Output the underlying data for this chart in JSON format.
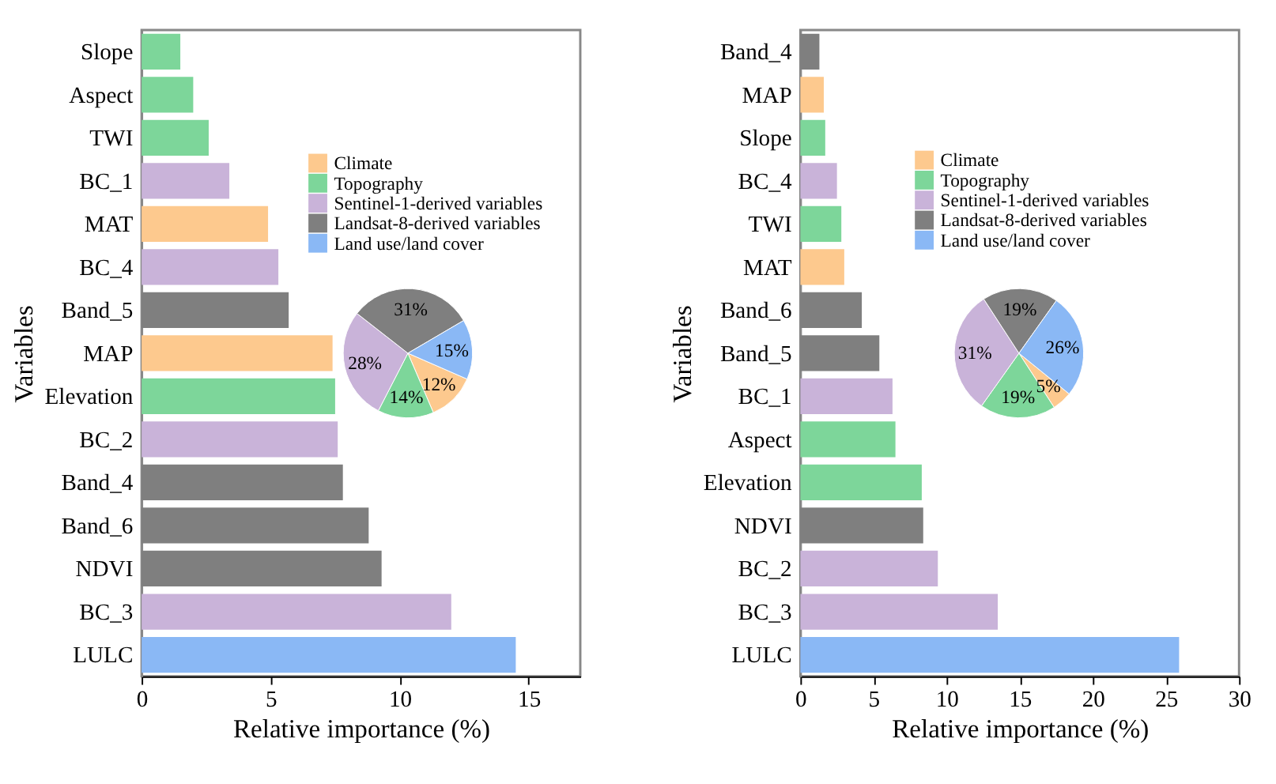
{
  "chart_data": [
    {
      "type": "bar",
      "orientation": "horizontal",
      "xlabel": "Relative importance (%)",
      "ylabel": "Variables",
      "categories": [
        "Slope",
        "Aspect",
        "TWI",
        "BC_1",
        "MAT",
        "BC_4",
        "Band_5",
        "MAP",
        "Elevation",
        "BC_2",
        "Band_4",
        "Band_6",
        "NDVI",
        "BC_3",
        "LULC"
      ],
      "values": [
        1.5,
        2.0,
        2.6,
        3.4,
        4.9,
        5.3,
        5.7,
        7.4,
        7.5,
        7.6,
        7.8,
        8.8,
        9.3,
        12.0,
        14.5
      ],
      "colors": [
        "#7dd69a",
        "#7dd69a",
        "#7dd69a",
        "#c9b3d9",
        "#fdc98e",
        "#c9b3d9",
        "#7f7f7f",
        "#fdc98e",
        "#7dd69a",
        "#c9b3d9",
        "#7f7f7f",
        "#7f7f7f",
        "#7f7f7f",
        "#c9b3d9",
        "#8ab8f5"
      ],
      "xlim": [
        0,
        17
      ],
      "xticks": [
        0,
        5,
        10,
        15
      ],
      "grid": false
    },
    {
      "type": "pie",
      "categories": [
        "Climate",
        "Topography",
        "Sentinel-1-derived variables",
        "Landsat-8-derived variables",
        "Land use/land cover"
      ],
      "values": [
        12,
        14,
        28,
        31,
        15
      ],
      "value_labels": [
        "12%",
        "14%",
        "28%",
        "31%",
        "15%"
      ],
      "colors": [
        "#fdc98e",
        "#7dd69a",
        "#c9b3d9",
        "#7f7f7f",
        "#8ab8f5"
      ],
      "legend": "top"
    },
    {
      "type": "bar",
      "orientation": "horizontal",
      "xlabel": "Relative importance (%)",
      "ylabel": "Variables",
      "categories": [
        "Band_4",
        "MAP",
        "Slope",
        "BC_4",
        "TWI",
        "MAT",
        "Band_6",
        "Band_5",
        "BC_1",
        "Aspect",
        "Elevation",
        "NDVI",
        "BC_2",
        "BC_3",
        "LULC"
      ],
      "values": [
        1.3,
        1.6,
        1.7,
        2.5,
        2.8,
        3.0,
        4.2,
        5.4,
        6.3,
        6.5,
        8.3,
        8.4,
        9.4,
        13.5,
        25.9
      ],
      "colors": [
        "#7f7f7f",
        "#fdc98e",
        "#7dd69a",
        "#c9b3d9",
        "#7dd69a",
        "#fdc98e",
        "#7f7f7f",
        "#7f7f7f",
        "#c9b3d9",
        "#7dd69a",
        "#7dd69a",
        "#7f7f7f",
        "#c9b3d9",
        "#c9b3d9",
        "#8ab8f5"
      ],
      "xlim": [
        0,
        30
      ],
      "xticks": [
        0,
        5,
        10,
        15,
        20,
        25,
        30
      ],
      "grid": false
    },
    {
      "type": "pie",
      "categories": [
        "Climate",
        "Topography",
        "Sentinel-1-derived variables",
        "Landsat-8-derived variables",
        "Land use/land cover"
      ],
      "values": [
        5,
        19,
        31,
        19,
        26
      ],
      "value_labels": [
        "5%",
        "19%",
        "31%",
        "19%",
        "26%"
      ],
      "colors": [
        "#fdc98e",
        "#7dd69a",
        "#c9b3d9",
        "#7f7f7f",
        "#8ab8f5"
      ],
      "legend": "top"
    }
  ]
}
